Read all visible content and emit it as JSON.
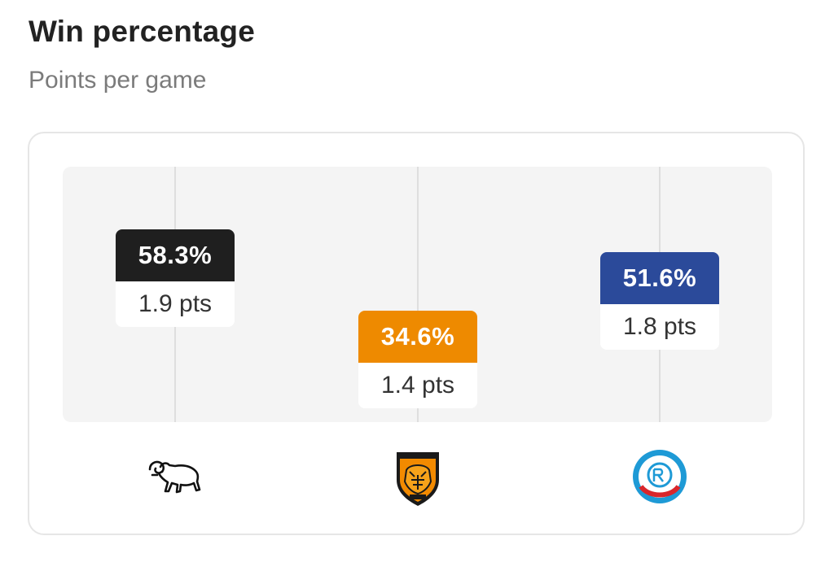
{
  "header": {
    "title": "Win percentage",
    "subtitle": "Points per game"
  },
  "chart_data": {
    "type": "scatter",
    "title": "Win percentage",
    "subtitle": "Points per game",
    "categories": [
      "Derby County",
      "Hull City",
      "RC Strasbourg Alsace"
    ],
    "grid": true,
    "points": [
      {
        "team": "Derby County",
        "win_pct": 58.3,
        "win_label": "58.3%",
        "ppg": 1.9,
        "ppg_label": "1.9 pts",
        "color": "#1f1f1f",
        "icon": "derby-ram-icon"
      },
      {
        "team": "Hull City",
        "win_pct": 34.6,
        "win_label": "34.6%",
        "ppg": 1.4,
        "ppg_label": "1.4 pts",
        "color": "#ee8a00",
        "icon": "hull-tiger-icon"
      },
      {
        "team": "RC Strasbourg Alsace",
        "win_pct": 51.6,
        "win_label": "51.6%",
        "ppg": 1.8,
        "ppg_label": "1.8 pts",
        "color": "#2b4a9a",
        "icon": "strasbourg-crest-icon"
      }
    ]
  }
}
